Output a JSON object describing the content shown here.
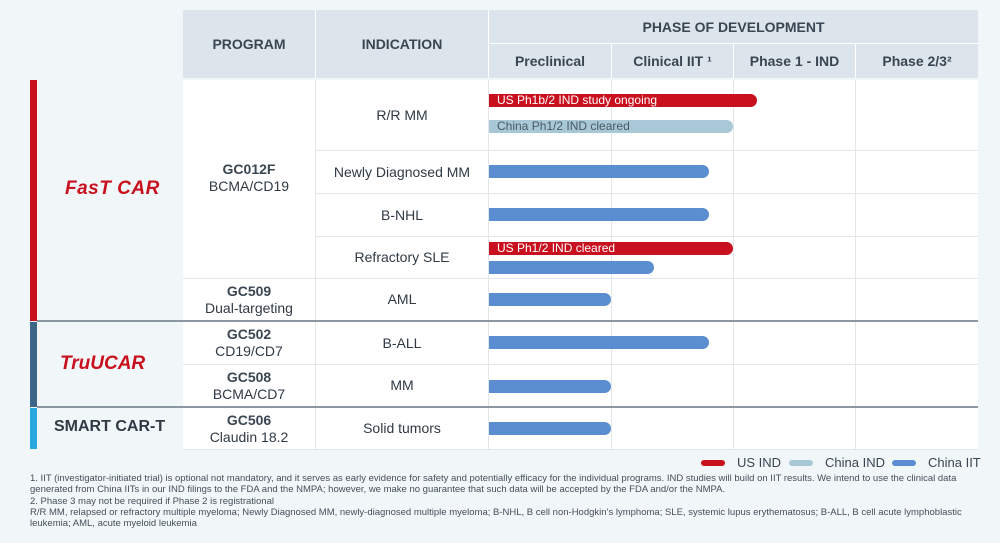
{
  "header": {
    "program": "PROGRAM",
    "indication": "INDICATION",
    "phase_title": "PHASE OF DEVELOPMENT",
    "phases": [
      "Preclinical",
      "Clinical IIT ¹",
      "Phase 1 - IND",
      "Phase 2/3²"
    ]
  },
  "platforms": [
    {
      "name": "FasT CAR",
      "color": "#c8101e"
    },
    {
      "name": "TruUCAR",
      "color": "#3d6688"
    },
    {
      "name": "SMART CAR-T",
      "color": "#2aa8df"
    }
  ],
  "programs": [
    {
      "code": "GC012F",
      "sub": "BCMA/CD19"
    },
    {
      "code": "GC509",
      "sub": "Dual-targeting"
    },
    {
      "code": "GC502",
      "sub": "CD19/CD7"
    },
    {
      "code": "GC508",
      "sub": "BCMA/CD7"
    },
    {
      "code": "GC506",
      "sub": "Claudin 18.2"
    }
  ],
  "indications": [
    "R/R MM",
    "Newly Diagnosed MM",
    "B-NHL",
    "Refractory SLE",
    "AML",
    "B-ALL",
    "MM",
    "Solid tumors"
  ],
  "bars": [
    {
      "type": "us",
      "label": "US Ph1b/2 IND study ongoing",
      "progress": 2.2
    },
    {
      "type": "cn",
      "label": "China Ph1/2 IND cleared",
      "progress": 2.0
    },
    {
      "type": "iit",
      "label": "",
      "progress": 1.8
    },
    {
      "type": "iit",
      "label": "",
      "progress": 1.8
    },
    {
      "type": "us",
      "label": "US Ph1/2 IND cleared",
      "progress": 2.0
    },
    {
      "type": "iit",
      "label": "",
      "progress": 1.35
    },
    {
      "type": "iit",
      "label": "",
      "progress": 1.0
    },
    {
      "type": "iit",
      "label": "",
      "progress": 1.8
    },
    {
      "type": "iit",
      "label": "",
      "progress": 1.0
    },
    {
      "type": "iit",
      "label": "",
      "progress": 1.0
    }
  ],
  "legend": [
    {
      "label": "US IND",
      "color": "#c8101e"
    },
    {
      "label": "China IND",
      "color": "#a8c8d8"
    },
    {
      "label": "China IIT",
      "color": "#5b8ed0"
    }
  ],
  "footnotes": {
    "note1": "1. IIT (investigator-initiated trial) is optional not mandatory, and it serves as early evidence for safety and potentially efficacy for the individual programs. IND studies will build on IIT results. We intend to use the clinical data generated from China IITs in our IND filings to the FDA and the NMPA; however, we make no guarantee that such data will be accepted by the FDA and/or the NMPA.",
    "note2": "2. Phase 3 may not be required if Phase 2 is registrational",
    "abbrev": "R/R MM, relapsed or refractory multiple myeloma; Newly Diagnosed MM, newly-diagnosed multiple myeloma; B-NHL, B cell non-Hodgkin’s lymphoma; SLE, systemic lupus erythematosus; B-ALL, B cell acute lymphoblastic leukemia; AML, acute myeloid leukemia"
  }
}
